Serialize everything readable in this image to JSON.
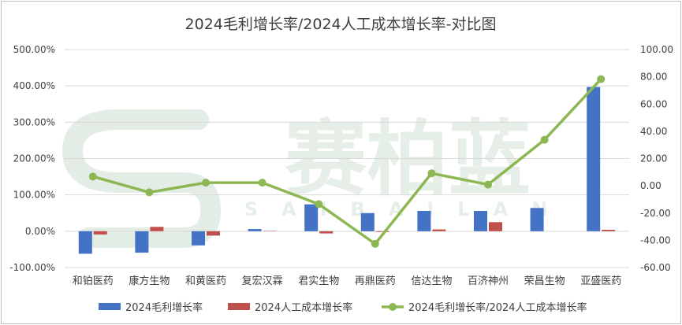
{
  "watermark": {
    "main": "赛柏蓝",
    "sub": "SAIBAILAN"
  },
  "chart_data": {
    "type": "bar",
    "title": "2024毛利增长率/2024人工成本增长率-对比图",
    "categories": [
      "和铂医药",
      "康方生物",
      "和黄医药",
      "复宏汉霖",
      "君实生物",
      "再鼎医药",
      "信达生物",
      "百济神州",
      "荣昌生物",
      "亚盛医药"
    ],
    "series": [
      {
        "name": "2024毛利增长率",
        "type": "bar",
        "axis": "left",
        "color": "#4472c4",
        "values": [
          -62,
          -59,
          -39,
          6,
          74,
          50,
          56,
          56,
          64,
          397
        ]
      },
      {
        "name": "2024人工成本增长率",
        "type": "bar",
        "axis": "left",
        "color": "#c0504d",
        "values": [
          -9,
          12,
          -12,
          1,
          -6,
          -2,
          5,
          25,
          0,
          4
        ]
      },
      {
        "name": "2024毛利增长率/2024人工成本增长率",
        "type": "line",
        "axis": "right",
        "color": "#8db753",
        "values": [
          6.8,
          -4.8,
          2.3,
          2.3,
          -13.4,
          -42.6,
          9.2,
          0.9,
          33.8,
          78.3
        ]
      }
    ],
    "y_left": {
      "min": -100,
      "max": 500,
      "step": 100,
      "ticks": [
        "-100.00%",
        "0.00%",
        "100.00%",
        "200.00%",
        "300.00%",
        "400.00%",
        "500.00%"
      ]
    },
    "y_right": {
      "min": -60,
      "max": 100,
      "step": 20,
      "ticks": [
        "-60.00",
        "-40.00",
        "-20.00",
        "0.00",
        "20.00",
        "40.00",
        "60.00",
        "80.00",
        "100.00"
      ]
    },
    "grid": true,
    "legend": "bottom"
  }
}
